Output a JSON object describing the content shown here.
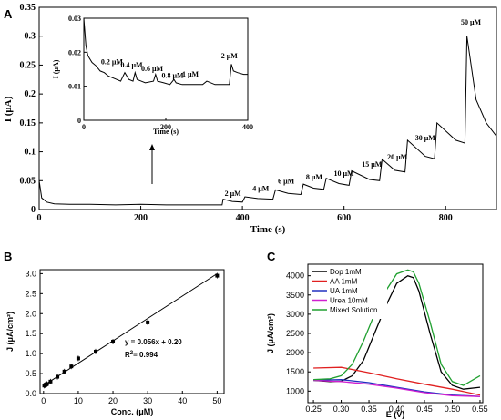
{
  "chart_data": [
    {
      "panel": "A",
      "type": "line",
      "xlabel": "Time (s)",
      "ylabel": "I (μA)",
      "xlim": [
        0,
        900
      ],
      "ylim": [
        0,
        0.35
      ],
      "xticks": [
        "0",
        "200",
        "400",
        "600",
        "800"
      ],
      "yticks": [
        "0",
        "0.05",
        "0.1",
        "0.15",
        "0.2",
        "0.25",
        "0.3",
        "0.35"
      ],
      "series": [
        {
          "x": [
            0,
            5,
            15,
            30,
            60,
            100,
            150,
            200,
            250,
            300,
            360,
            362,
            380,
            400,
            405,
            430,
            460,
            465,
            490,
            515,
            520,
            540,
            560,
            565,
            590,
            610,
            615,
            650,
            670,
            675,
            700,
            720,
            725,
            760,
            778,
            783,
            820,
            838,
            842,
            860,
            880,
            900
          ],
          "y": [
            0.05,
            0.02,
            0.013,
            0.01,
            0.009,
            0.009,
            0.008,
            0.009,
            0.008,
            0.008,
            0.008,
            0.018,
            0.014,
            0.013,
            0.022,
            0.019,
            0.018,
            0.034,
            0.028,
            0.026,
            0.044,
            0.037,
            0.035,
            0.054,
            0.045,
            0.042,
            0.067,
            0.052,
            0.05,
            0.087,
            0.068,
            0.065,
            0.12,
            0.092,
            0.088,
            0.15,
            0.12,
            0.115,
            0.3,
            0.19,
            0.15,
            0.127
          ]
        }
      ],
      "annotations": [
        "2 μM",
        "4 μM",
        "6 μM",
        "8 μM",
        "10 μM",
        "15 μM",
        "20 μM",
        "30 μM",
        "50 μM"
      ],
      "inset": {
        "xlabel": "Time (s)",
        "ylabel": "I (μA)",
        "xlim": [
          0,
          400
        ],
        "ylim": [
          0,
          0.03
        ],
        "xticks": [
          "0",
          "200",
          "400"
        ],
        "yticks": [
          "0",
          "0.01",
          "0.02",
          "0.03"
        ],
        "x": [
          0,
          5,
          10,
          20,
          30,
          40,
          50,
          60,
          70,
          80,
          90,
          100,
          110,
          120,
          125,
          130,
          140,
          150,
          170,
          175,
          180,
          195,
          210,
          220,
          225,
          240,
          260,
          290,
          300,
          320,
          340,
          355,
          360,
          365,
          375,
          390,
          400
        ],
        "y": [
          0.03,
          0.022,
          0.019,
          0.017,
          0.016,
          0.0145,
          0.014,
          0.013,
          0.0125,
          0.012,
          0.0115,
          0.014,
          0.012,
          0.0115,
          0.014,
          0.012,
          0.0115,
          0.011,
          0.0115,
          0.0135,
          0.0115,
          0.011,
          0.0105,
          0.012,
          0.011,
          0.0105,
          0.0105,
          0.0105,
          0.0115,
          0.0105,
          0.0105,
          0.0105,
          0.0165,
          0.0145,
          0.014,
          0.0135,
          0.0135
        ],
        "annotations": [
          "0.2 μM",
          "0.4 μM",
          "0.6 μM",
          "0.8 μM",
          "1 μM",
          "2 μM"
        ]
      }
    },
    {
      "panel": "B",
      "type": "scatter",
      "xlabel": "Conc. (μM)",
      "ylabel": "J (μA/cm²)",
      "xlim": [
        0,
        50
      ],
      "ylim": [
        0,
        3.0
      ],
      "xticks": [
        "0",
        "10",
        "20",
        "30",
        "40",
        "50"
      ],
      "yticks": [
        "0.0",
        "0.5",
        "1.0",
        "1.5",
        "2.0",
        "2.5",
        "3.0"
      ],
      "x": [
        0.2,
        0.4,
        0.6,
        0.8,
        1,
        2,
        4,
        6,
        8,
        10,
        15,
        20,
        30,
        50
      ],
      "y": [
        0.2,
        0.21,
        0.22,
        0.23,
        0.24,
        0.3,
        0.42,
        0.55,
        0.68,
        0.88,
        1.05,
        1.3,
        1.78,
        2.95
      ],
      "fit_text": "y = 0.056x + 0.20",
      "r2_text": "R",
      "r2_value": "= 0.994"
    },
    {
      "panel": "C",
      "type": "line",
      "xlabel": "E (V)",
      "ylabel": "J (μA/cm²)",
      "xlim": [
        0.25,
        0.55
      ],
      "ylim": [
        700,
        4300
      ],
      "xticks": [
        "0.25",
        "0.30",
        "0.35",
        "0.40",
        "0.45",
        "0.50",
        "0.55"
      ],
      "yticks": [
        "1000",
        "1500",
        "2000",
        "2500",
        "3000",
        "3500",
        "4000"
      ],
      "series": [
        {
          "name": "Dop 1mM",
          "color": "#000000",
          "x": [
            0.25,
            0.28,
            0.3,
            0.32,
            0.34,
            0.36,
            0.38,
            0.4,
            0.42,
            0.43,
            0.44,
            0.46,
            0.48,
            0.5,
            0.52,
            0.55
          ],
          "y": [
            1280,
            1250,
            1260,
            1400,
            1800,
            2500,
            3200,
            3800,
            4000,
            3950,
            3600,
            2500,
            1500,
            1150,
            1050,
            1100
          ]
        },
        {
          "name": "AA 1mM",
          "color": "#e02020",
          "x": [
            0.25,
            0.3,
            0.35,
            0.4,
            0.45,
            0.5,
            0.55
          ],
          "y": [
            1600,
            1620,
            1480,
            1320,
            1180,
            1050,
            900
          ]
        },
        {
          "name": "UA 1mM",
          "color": "#2030c0",
          "x": [
            0.25,
            0.3,
            0.35,
            0.4,
            0.45,
            0.5,
            0.55
          ],
          "y": [
            1280,
            1300,
            1220,
            1100,
            980,
            900,
            860
          ]
        },
        {
          "name": "Urea 10mM",
          "color": "#d020d0",
          "x": [
            0.25,
            0.3,
            0.35,
            0.4,
            0.45,
            0.5,
            0.55
          ],
          "y": [
            1280,
            1250,
            1180,
            1080,
            960,
            880,
            860
          ]
        },
        {
          "name": "Mixed Solution",
          "color": "#20a030",
          "x": [
            0.25,
            0.28,
            0.3,
            0.32,
            0.34,
            0.36,
            0.38,
            0.4,
            0.42,
            0.43,
            0.44,
            0.46,
            0.48,
            0.5,
            0.52,
            0.55
          ],
          "y": [
            1300,
            1320,
            1400,
            1700,
            2300,
            3000,
            3600,
            4050,
            4150,
            4100,
            3800,
            2800,
            1700,
            1250,
            1150,
            1400
          ]
        }
      ]
    }
  ]
}
